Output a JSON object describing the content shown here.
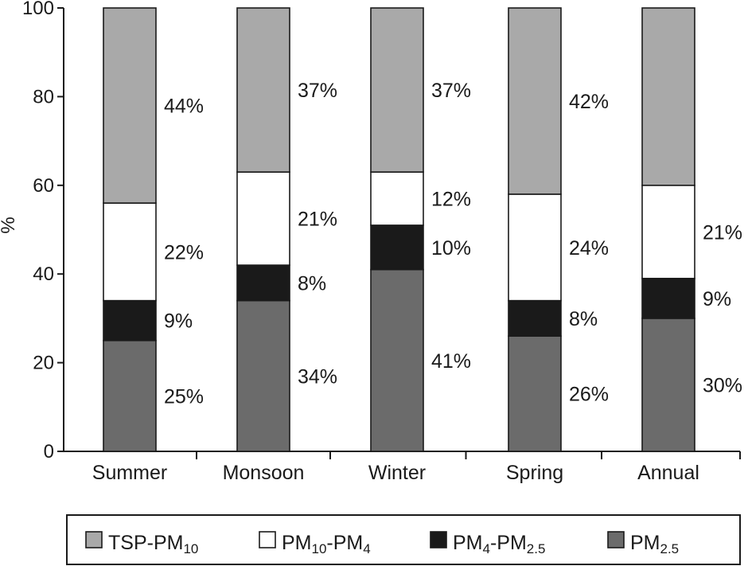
{
  "chart_data": {
    "type": "bar",
    "stacked": true,
    "title": "",
    "xlabel": "",
    "ylabel": "%",
    "ylim": [
      0,
      100
    ],
    "yticks": [
      0,
      20,
      40,
      60,
      80,
      100
    ],
    "grid": false,
    "legend_position": "bottom",
    "categories": [
      "Summer",
      "Monsoon",
      "Winter",
      "Spring",
      "Annual"
    ],
    "series": [
      {
        "key": "pm25",
        "legend": [
          {
            "t": "PM",
            "sub": false
          },
          {
            "t": "2.5",
            "sub": true
          }
        ],
        "color": "#6b6b6b",
        "values": [
          25,
          34,
          41,
          26,
          30
        ],
        "labels": [
          "25%",
          "34%",
          "41%",
          "26%",
          "30%"
        ]
      },
      {
        "key": "pm4_pm25",
        "legend": [
          {
            "t": "PM",
            "sub": false
          },
          {
            "t": "4",
            "sub": true
          },
          {
            "t": "-PM",
            "sub": false
          },
          {
            "t": "2.5",
            "sub": true
          }
        ],
        "color": "#1a1a1a",
        "values": [
          9,
          8,
          10,
          8,
          9
        ],
        "labels": [
          "9%",
          "8%",
          "10%",
          "8%",
          "9%"
        ]
      },
      {
        "key": "pm10_pm4",
        "legend": [
          {
            "t": "PM",
            "sub": false
          },
          {
            "t": "10",
            "sub": true
          },
          {
            "t": "-PM",
            "sub": false
          },
          {
            "t": "4",
            "sub": true
          }
        ],
        "color": "#ffffff",
        "values": [
          22,
          21,
          12,
          24,
          21
        ],
        "labels": [
          "22%",
          "21%",
          "12%",
          "24%",
          "21%"
        ]
      },
      {
        "key": "tsp_pm10",
        "legend": [
          {
            "t": "TSP-PM",
            "sub": false
          },
          {
            "t": "10",
            "sub": true
          }
        ],
        "color": "#a9a9a9",
        "values": [
          44,
          37,
          37,
          42,
          40
        ],
        "labels": [
          "44%",
          "37%",
          "37%",
          "42%",
          ""
        ]
      }
    ],
    "legend_order": [
      "tsp_pm10",
      "pm10_pm4",
      "pm4_pm25",
      "pm25"
    ]
  }
}
